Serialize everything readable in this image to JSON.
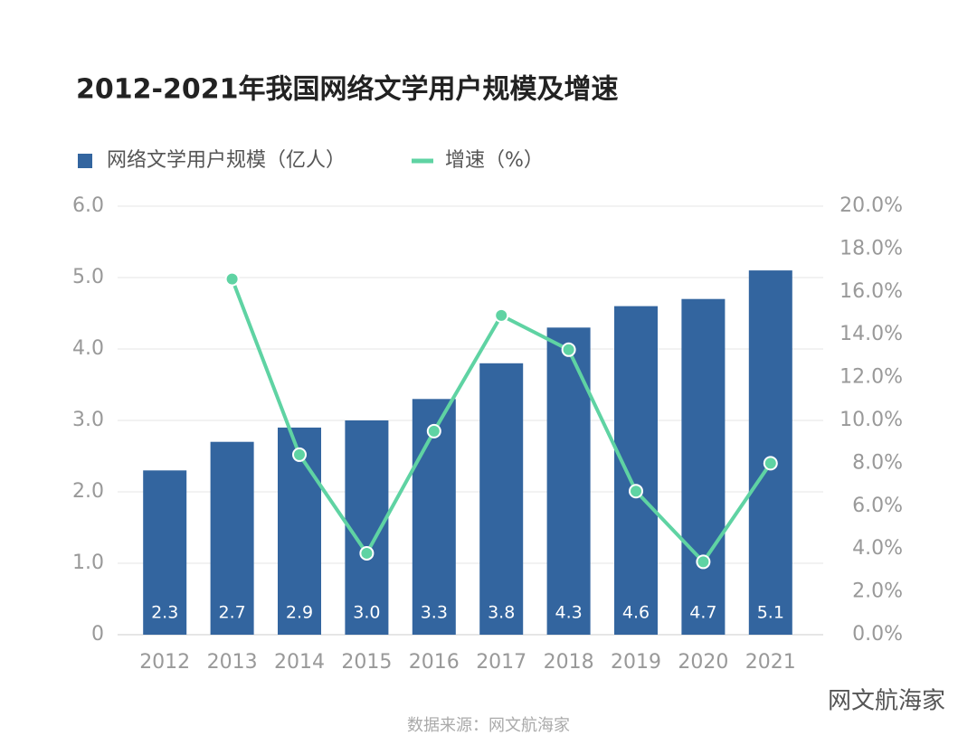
{
  "chart_data": {
    "type": "bar",
    "title": "2012-2021年我国网络文学用户规模及增速",
    "categories": [
      "2012",
      "2013",
      "2014",
      "2015",
      "2016",
      "2017",
      "2018",
      "2019",
      "2020",
      "2021"
    ],
    "series": [
      {
        "name": "网络文学用户规模（亿人）",
        "type": "bar",
        "color": "#33659f",
        "values": [
          2.3,
          2.7,
          2.9,
          3.0,
          3.3,
          3.8,
          4.3,
          4.6,
          4.7,
          5.1
        ],
        "value_labels": [
          "2.3",
          "2.7",
          "2.9",
          "3.0",
          "3.3",
          "3.8",
          "4.3",
          "4.6",
          "4.7",
          "5.1"
        ]
      },
      {
        "name": "增速（%）",
        "type": "line",
        "axis": "y2",
        "color": "#5fd3a3",
        "values": [
          null,
          16.6,
          8.4,
          3.8,
          9.5,
          14.9,
          13.3,
          6.7,
          3.4,
          8.0
        ]
      }
    ],
    "ylim": [
      0,
      6
    ],
    "yticks": [
      0,
      {
        "value": 1,
        "label": "1.0"
      },
      {
        "value": 2,
        "label": "2.0"
      },
      {
        "value": 3,
        "label": "3.0"
      },
      {
        "value": 4,
        "label": "4.0"
      },
      {
        "value": 5,
        "label": "5.0"
      },
      {
        "value": 6,
        "label": "6.0"
      }
    ],
    "y2lim": [
      0,
      20
    ],
    "y2ticks": [
      {
        "value": 0,
        "label": "0.0%"
      },
      {
        "value": 2,
        "label": "2.0%"
      },
      {
        "value": 4,
        "label": "4.0%"
      },
      {
        "value": 6,
        "label": "6.0%"
      },
      {
        "value": 8,
        "label": "8.0%"
      },
      {
        "value": 10,
        "label": "10.0%"
      },
      {
        "value": 12,
        "label": "12.0%"
      },
      {
        "value": 14,
        "label": "14.0%"
      },
      {
        "value": 16,
        "label": "16.0%"
      },
      {
        "value": 18,
        "label": "18.0%"
      },
      {
        "value": 20,
        "label": "20.0%"
      }
    ],
    "grid": true
  },
  "source": "数据来源：网文航海家",
  "watermark": "网文航海家"
}
